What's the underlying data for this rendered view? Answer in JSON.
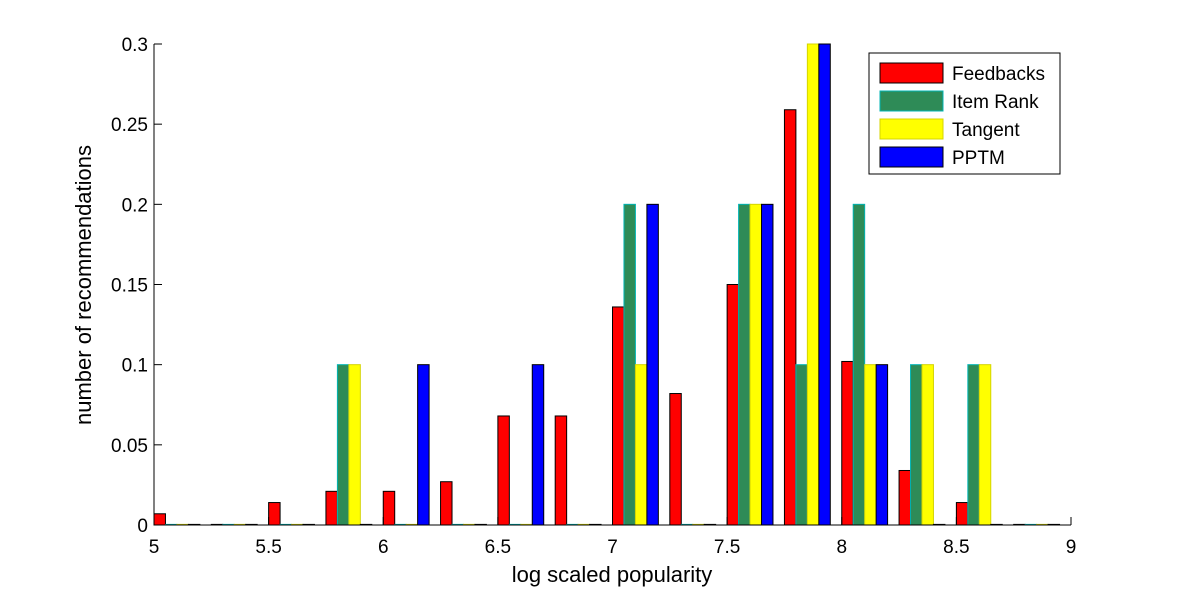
{
  "chart_data": {
    "type": "bar",
    "xlabel": "log scaled popularity",
    "ylabel": "number of recommendations",
    "xlim": [
      5,
      9
    ],
    "ylim": [
      0,
      0.3
    ],
    "x_ticks": [
      5,
      5.5,
      6,
      6.5,
      7,
      7.5,
      8,
      8.5,
      9
    ],
    "x_tick_labels": [
      "5",
      "5.5",
      "6",
      "6.5",
      "7",
      "7.5",
      "8",
      "8.5",
      "9"
    ],
    "y_ticks": [
      0,
      0.05,
      0.1,
      0.15,
      0.2,
      0.25,
      0.3
    ],
    "y_tick_labels": [
      "0",
      "0.05",
      "0.1",
      "0.15",
      "0.2",
      "0.25",
      "0.3"
    ],
    "legend_position": "top-right",
    "bin_width": 0.25,
    "x": [
      5.1,
      5.35,
      5.6,
      5.85,
      6.1,
      6.35,
      6.6,
      6.85,
      7.1,
      7.35,
      7.6,
      7.85,
      8.1,
      8.35,
      8.6,
      8.85
    ],
    "series": [
      {
        "name": "Feedbacks",
        "color": "#ff0000",
        "edge": "#000000",
        "values": [
          0.007,
          0.0,
          0.014,
          0.021,
          0.021,
          0.027,
          0.068,
          0.068,
          0.136,
          0.082,
          0.15,
          0.259,
          0.102,
          0.034,
          0.014,
          0.0
        ]
      },
      {
        "name": "Item Rank",
        "color": "#2e8b57",
        "edge": "#00b4b4",
        "values": [
          0.0,
          0.0,
          0.0,
          0.1,
          0.0,
          0.0,
          0.0,
          0.0,
          0.2,
          0.0,
          0.2,
          0.1,
          0.2,
          0.1,
          0.1,
          0.0
        ]
      },
      {
        "name": "Tangent",
        "color": "#ffff00",
        "edge": "#d4d400",
        "values": [
          0.0,
          0.0,
          0.0,
          0.1,
          0.0,
          0.0,
          0.0,
          0.0,
          0.1,
          0.0,
          0.2,
          0.3,
          0.1,
          0.1,
          0.1,
          0.0
        ]
      },
      {
        "name": "PPTM",
        "color": "#0000ff",
        "edge": "#000000",
        "values": [
          0.0,
          0.0,
          0.0,
          0.0,
          0.1,
          0.0,
          0.1,
          0.0,
          0.2,
          0.0,
          0.2,
          0.3,
          0.1,
          0.0,
          0.0,
          0.0
        ]
      }
    ]
  }
}
